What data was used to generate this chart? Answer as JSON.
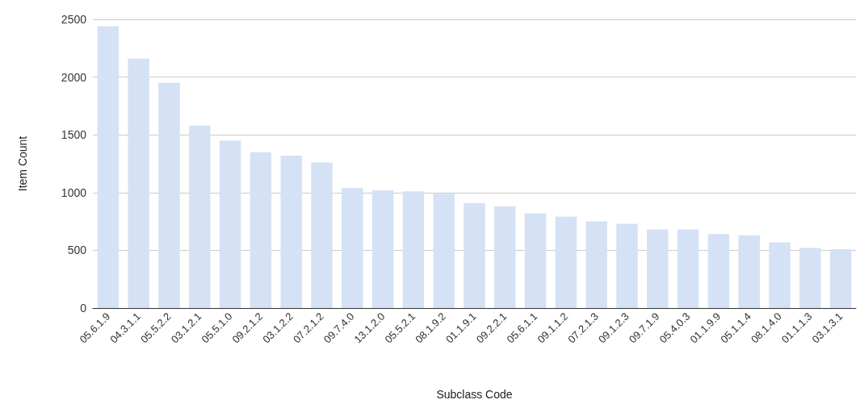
{
  "chart_data": {
    "type": "bar",
    "xlabel": "Subclass Code",
    "ylabel": "Item Count",
    "categories": [
      "05.6.1.9",
      "04.3.1.1",
      "05.5.2.2",
      "03.1.2.1",
      "05.5.1.0",
      "09.2.1.2",
      "03.1.2.2",
      "07.2.1.2",
      "09.7.4.0",
      "13.1.2.0",
      "05.5.2.1",
      "08.1.9.2",
      "01.1.9.1",
      "09.2.2.1",
      "05.6.1.1",
      "09.1.1.2",
      "07.2.1.3",
      "09.1.2.3",
      "09.7.1.9",
      "05.4.0.3",
      "01.1.9.9",
      "05.1.1.4",
      "08.1.4.0",
      "01.1.1.3",
      "03.1.3.1"
    ],
    "values": [
      2440,
      2160,
      1950,
      1580,
      1450,
      1350,
      1320,
      1260,
      1040,
      1020,
      1010,
      990,
      910,
      880,
      820,
      790,
      750,
      730,
      680,
      680,
      640,
      630,
      570,
      520,
      510
    ],
    "color": "#d5e1f5",
    "ylim": [
      0,
      2500
    ],
    "yticks": [
      0,
      500,
      1000,
      1500,
      2000,
      2500
    ],
    "grid": "y"
  }
}
